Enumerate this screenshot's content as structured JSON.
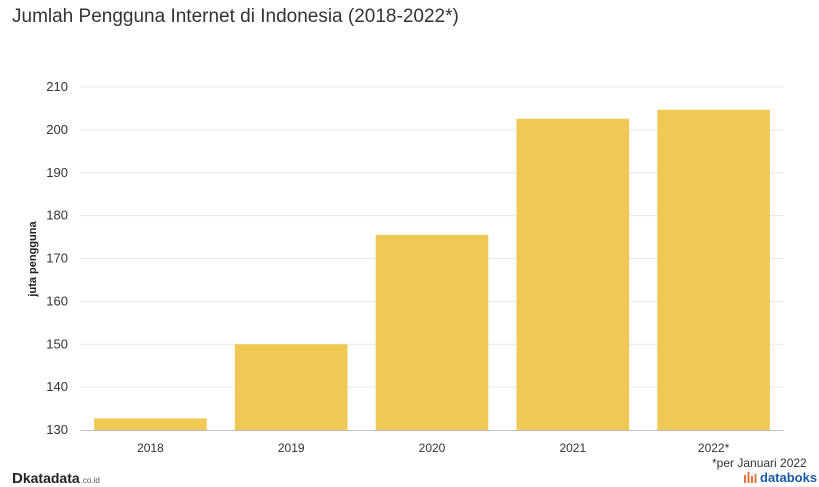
{
  "title": "Jumlah Pengguna Internet di Indonesia (2018-2022*)",
  "note": "*per Januari 2022",
  "brand_left": {
    "mark": "D",
    "name": "katadata",
    "suffix": ".co.id"
  },
  "brand_right": {
    "name": "databoks",
    "icon": "databoks-logo-icon"
  },
  "colors": {
    "bar": "#F0C955",
    "grid": "#e6e6e6",
    "axis": "#bdbdbd",
    "text": "#333333",
    "brand_blue": "#1a5aa6",
    "brand_orange": "#e8743b"
  },
  "chart_data": {
    "type": "bar",
    "categories": [
      "2018",
      "2019",
      "2020",
      "2021",
      "2022*"
    ],
    "values": [
      132.7,
      150.0,
      175.5,
      202.6,
      204.7
    ],
    "title": "Jumlah Pengguna Internet di Indonesia (2018-2022*)",
    "xlabel": "",
    "ylabel": "juta pengguna",
    "ylim": [
      130,
      210
    ],
    "yticks": [
      "130",
      "140",
      "150",
      "160",
      "170",
      "180",
      "190",
      "200",
      "210"
    ],
    "grid": true,
    "legend": "none"
  }
}
